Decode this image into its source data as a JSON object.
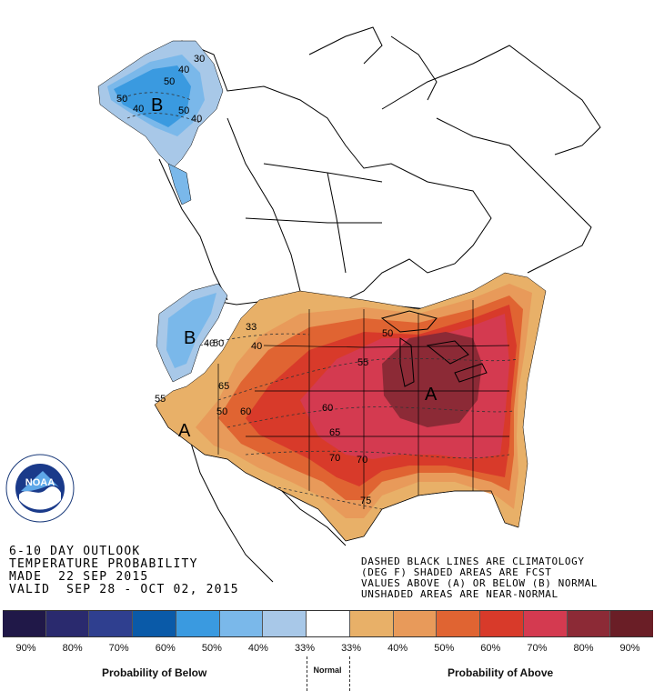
{
  "map": {
    "outlook_text": [
      "6-10 DAY OUTLOOK",
      "TEMPERATURE PROBABILITY",
      "MADE  22 SEP 2015",
      "VALID  SEP 28 - OCT 02, 2015"
    ],
    "notes": [
      "DASHED BLACK LINES ARE CLIMATOLOGY",
      "(DEG F) SHADED AREAS ARE FCST",
      "VALUES ABOVE (A) OR BELOW (B) NORMAL",
      "UNSHADED AREAS ARE NEAR-NORMAL"
    ],
    "region_labels": {
      "alaska_b": "B",
      "northwest_b": "B",
      "west_a": "A",
      "greatlakes_a": "A"
    },
    "contour_labels": {
      "ak_30": "30",
      "ak_40a": "40",
      "ak_40b": "40",
      "ak_40c": "40",
      "ak_50a": "50",
      "ak_50b": "50",
      "ak_50c": "50",
      "nw_40": "40",
      "nw_50": "50",
      "nw_33": "33",
      "nw_40b": "40",
      "w_55": "55",
      "w_50": "50",
      "w_60": "60",
      "w_65": "65",
      "c_60": "60",
      "c_65": "65",
      "c_70": "70",
      "c_70b": "70",
      "c_75": "75",
      "c_55": "55",
      "c_50": "50"
    },
    "logo_text": "NOAA"
  },
  "legend": {
    "colors": [
      "#201848",
      "#2a2a6e",
      "#2f3f8f",
      "#0a5aa8",
      "#3a9ae0",
      "#7ab8ea",
      "#a8c8e8",
      "#ffffff",
      "#e8b068",
      "#e89a5a",
      "#e06432",
      "#d83a2a",
      "#d43a50",
      "#8c2a36",
      "#6a1e26"
    ],
    "labels": [
      "90%",
      "80%",
      "70%",
      "60%",
      "50%",
      "40%",
      "33%",
      "33%",
      "40%",
      "50%",
      "60%",
      "70%",
      "80%",
      "90%"
    ],
    "below_caption": "Probability of Below",
    "normal_caption": "Normal",
    "above_caption": "Probability of Above"
  }
}
